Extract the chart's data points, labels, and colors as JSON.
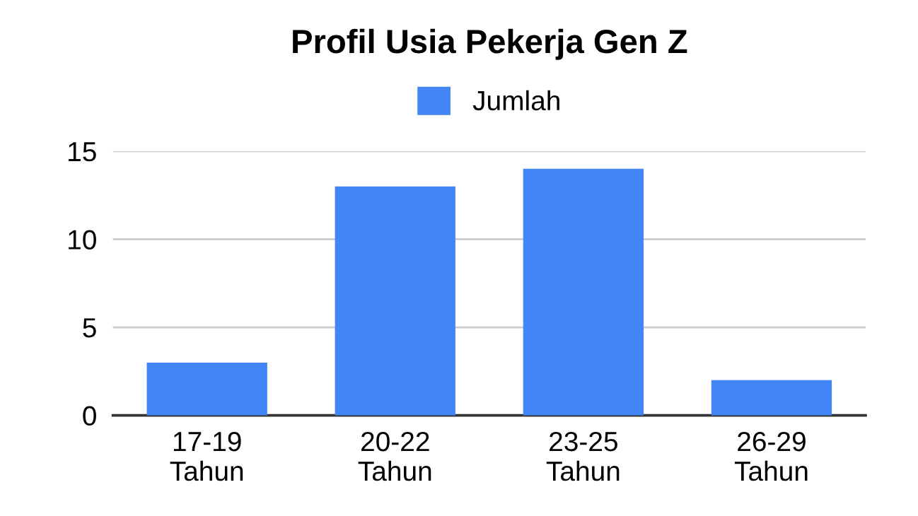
{
  "chart_data": {
    "type": "bar",
    "title": "Profil Usia Pekerja Gen Z",
    "categories": [
      "17-19\nTahun",
      "20-22\nTahun",
      "23-25\nTahun",
      "26-29\nTahun"
    ],
    "series": [
      {
        "name": "Jumlah",
        "color": "#4285f4",
        "values": [
          3,
          13,
          14,
          2
        ]
      }
    ],
    "ylim": [
      0,
      15
    ],
    "yticks": [
      0,
      5,
      10,
      15
    ],
    "grid": "y",
    "legend": "top"
  }
}
